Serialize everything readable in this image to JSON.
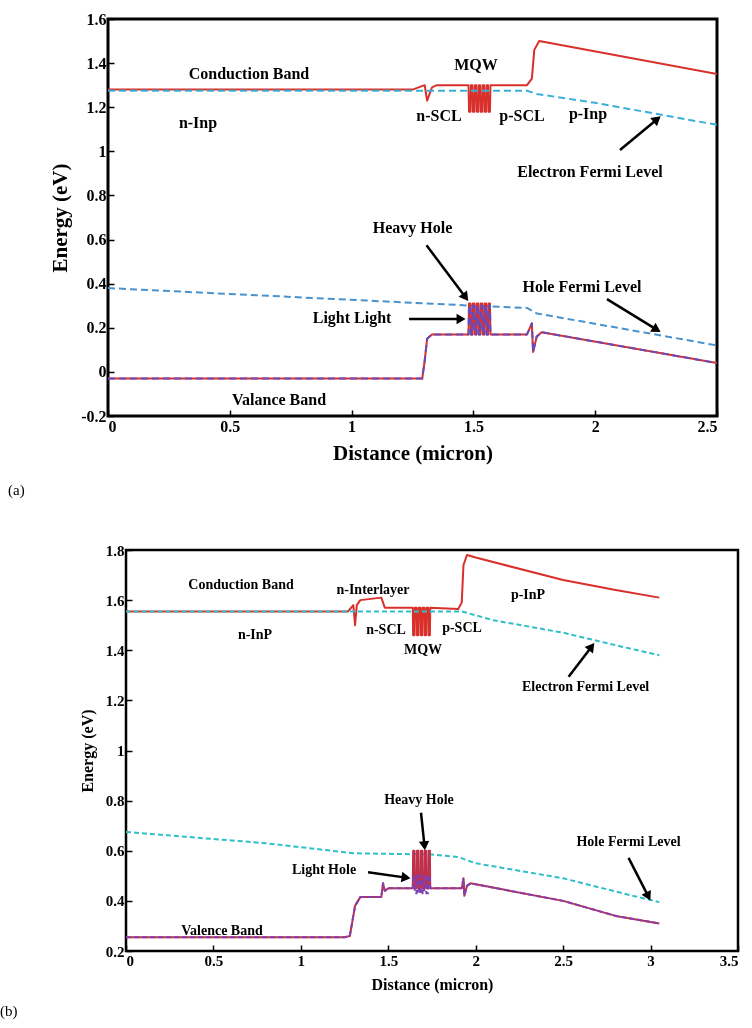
{
  "chart_data": [
    {
      "type": "line",
      "xlabel": "Distance (micron)",
      "ylabel": "Energy (eV)",
      "xlim": [
        0,
        2.5
      ],
      "ylim": [
        -0.2,
        1.6
      ],
      "xticks": [
        0,
        0.5,
        1,
        1.5,
        2,
        2.5
      ],
      "yticks": [
        -0.2,
        0,
        0.2,
        0.4,
        0.6,
        0.8,
        1,
        1.2,
        1.4,
        1.6
      ],
      "series": [
        {
          "color": "#d9302c",
          "line_style": "solid",
          "x": [
            0,
            1.25,
            1.3,
            1.31,
            1.33,
            1.35,
            1.48,
            1.482,
            1.488,
            1.49,
            1.496,
            1.498,
            1.504,
            1.506,
            1.512,
            1.514,
            1.52,
            1.522,
            1.528,
            1.53,
            1.536,
            1.538,
            1.544,
            1.546,
            1.552,
            1.554,
            1.56,
            1.562,
            1.568,
            1.57,
            1.72,
            1.74,
            1.75,
            1.77,
            2.5
          ],
          "values": [
            1.28,
            1.28,
            1.3,
            1.23,
            1.29,
            1.3,
            1.3,
            1.18,
            1.18,
            1.3,
            1.3,
            1.18,
            1.18,
            1.3,
            1.3,
            1.18,
            1.18,
            1.3,
            1.3,
            1.18,
            1.18,
            1.3,
            1.3,
            1.18,
            1.18,
            1.3,
            1.3,
            1.18,
            1.18,
            1.3,
            1.3,
            1.33,
            1.46,
            1.5,
            1.35
          ]
        },
        {
          "color": "#38b0d8",
          "line_style": "dashed",
          "x": [
            0,
            1.72,
            1.76,
            2.0,
            2.5
          ],
          "values": [
            1.275,
            1.275,
            1.26,
            1.22,
            1.12
          ]
        },
        {
          "color": "#4a92cc",
          "line_style": "dashed",
          "x": [
            0,
            1.5,
            1.72,
            1.76,
            2.5
          ],
          "values": [
            0.38,
            0.3,
            0.29,
            0.265,
            0.12
          ]
        },
        {
          "color": "#d9302c",
          "line_style": "solid",
          "x": [
            0,
            1.29,
            1.3,
            1.31,
            1.33,
            1.48,
            1.482,
            1.488,
            1.49,
            1.496,
            1.498,
            1.504,
            1.506,
            1.512,
            1.514,
            1.52,
            1.522,
            1.528,
            1.53,
            1.536,
            1.538,
            1.544,
            1.546,
            1.552,
            1.554,
            1.56,
            1.562,
            1.568,
            1.57,
            1.72,
            1.74,
            1.745,
            1.76,
            1.78,
            2.5
          ],
          "values": [
            -0.03,
            -0.03,
            0.05,
            0.15,
            0.17,
            0.17,
            0.31,
            0.31,
            0.17,
            0.17,
            0.31,
            0.31,
            0.17,
            0.17,
            0.31,
            0.31,
            0.17,
            0.17,
            0.31,
            0.31,
            0.17,
            0.17,
            0.31,
            0.31,
            0.17,
            0.17,
            0.31,
            0.31,
            0.17,
            0.17,
            0.22,
            0.09,
            0.16,
            0.18,
            0.04
          ]
        },
        {
          "color": "#6a4ab8",
          "line_style": "dashed",
          "x": [
            0,
            1.29,
            1.3,
            1.31,
            1.33,
            1.48,
            1.482,
            1.488,
            1.49,
            1.496,
            1.498,
            1.504,
            1.506,
            1.512,
            1.514,
            1.52,
            1.522,
            1.528,
            1.53,
            1.536,
            1.538,
            1.544,
            1.546,
            1.552,
            1.554,
            1.56,
            1.562,
            1.568,
            1.57,
            1.72,
            1.74,
            1.745,
            1.76,
            1.78,
            2.5
          ],
          "values": [
            -0.03,
            -0.03,
            0.05,
            0.15,
            0.17,
            0.17,
            0.3,
            0.3,
            0.17,
            0.17,
            0.3,
            0.3,
            0.17,
            0.17,
            0.3,
            0.3,
            0.17,
            0.17,
            0.3,
            0.3,
            0.17,
            0.17,
            0.3,
            0.3,
            0.17,
            0.17,
            0.3,
            0.3,
            0.17,
            0.17,
            0.22,
            0.09,
            0.16,
            0.18,
            0.04
          ]
        }
      ],
      "annotations": [
        "Conduction Band",
        "n-Inp",
        "MQW",
        "n-SCL",
        "p-SCL",
        "p-Inp",
        {
          "text": "Electron Fermi Level",
          "x": 2.27,
          "y": 1.16
        },
        {
          "text": "Heavy Hole",
          "x": 1.48,
          "y": 0.32
        },
        {
          "text": "Light Light",
          "x": 1.47,
          "y": 0.24
        },
        {
          "text": "Hole Fermi Level",
          "x": 2.27,
          "y": 0.18
        },
        "Valance Band",
        "(a)"
      ]
    },
    {
      "type": "line",
      "xlabel": "Distance (micron)",
      "ylabel": "Energy (eV)",
      "xlim": [
        0,
        3.5
      ],
      "ylim": [
        0.2,
        1.8
      ],
      "xticks": [
        0,
        0.5,
        1,
        1.5,
        2,
        2.5,
        3,
        3.5
      ],
      "yticks": [
        0.2,
        0.4,
        0.6,
        0.8,
        1,
        1.2,
        1.4,
        1.6,
        1.8
      ],
      "series": [
        {
          "color": "#d9302c",
          "line_style": "solid",
          "x": [
            0,
            1.27,
            1.3,
            1.31,
            1.32,
            1.34,
            1.46,
            1.48,
            1.64,
            1.642,
            1.65,
            1.652,
            1.662,
            1.664,
            1.672,
            1.674,
            1.684,
            1.686,
            1.694,
            1.696,
            1.706,
            1.708,
            1.716,
            1.718,
            1.728,
            1.73,
            1.738,
            1.74,
            1.9,
            1.92,
            1.93,
            1.95,
            2.0,
            2.5,
            2.8,
            3.05
          ],
          "values": [
            1.555,
            1.555,
            1.58,
            1.5,
            1.58,
            1.6,
            1.61,
            1.57,
            1.57,
            1.46,
            1.46,
            1.57,
            1.57,
            1.46,
            1.46,
            1.57,
            1.57,
            1.46,
            1.46,
            1.57,
            1.57,
            1.46,
            1.46,
            1.57,
            1.57,
            1.46,
            1.46,
            1.57,
            1.565,
            1.59,
            1.74,
            1.78,
            1.77,
            1.68,
            1.64,
            1.61
          ]
        },
        {
          "color": "#2ec0c8",
          "line_style": "dashed",
          "x": [
            0,
            1.92,
            2.1,
            2.5,
            2.8,
            3.05
          ],
          "values": [
            1.555,
            1.555,
            1.52,
            1.47,
            1.42,
            1.38
          ]
        },
        {
          "color": "#2ec0c8",
          "line_style": "dashed",
          "x": [
            0,
            0.8,
            1.3,
            1.75,
            1.9,
            2.0,
            2.5,
            2.9,
            3.05
          ],
          "values": [
            0.675,
            0.63,
            0.59,
            0.585,
            0.575,
            0.55,
            0.49,
            0.42,
            0.395
          ]
        },
        {
          "color": "#c0304a",
          "line_style": "solid",
          "x": [
            0,
            1.25,
            1.28,
            1.31,
            1.34,
            1.46,
            1.47,
            1.48,
            1.5,
            1.64,
            1.642,
            1.65,
            1.652,
            1.662,
            1.664,
            1.672,
            1.674,
            1.684,
            1.686,
            1.694,
            1.696,
            1.706,
            1.708,
            1.716,
            1.718,
            1.728,
            1.73,
            1.738,
            1.74,
            1.92,
            1.93,
            1.935,
            1.95,
            1.97,
            2.5,
            2.8,
            3.05
          ],
          "values": [
            0.255,
            0.255,
            0.26,
            0.38,
            0.415,
            0.415,
            0.47,
            0.44,
            0.45,
            0.45,
            0.6,
            0.6,
            0.45,
            0.45,
            0.6,
            0.6,
            0.45,
            0.45,
            0.6,
            0.6,
            0.45,
            0.45,
            0.6,
            0.6,
            0.45,
            0.45,
            0.6,
            0.6,
            0.45,
            0.45,
            0.49,
            0.42,
            0.46,
            0.47,
            0.4,
            0.34,
            0.31
          ]
        },
        {
          "color": "#8040b0",
          "line_style": "dashed",
          "x": [
            0,
            1.25,
            1.28,
            1.31,
            1.34,
            1.46,
            1.47,
            1.48,
            1.5,
            1.64,
            1.642,
            1.65,
            1.652,
            1.662,
            1.664,
            1.672,
            1.674,
            1.684,
            1.686,
            1.694,
            1.696,
            1.706,
            1.708,
            1.716,
            1.718,
            1.728,
            1.73,
            1.738,
            1.74,
            1.92,
            1.93,
            1.935,
            1.95,
            1.97,
            2.5,
            2.8,
            3.05
          ],
          "values": [
            0.255,
            0.255,
            0.26,
            0.38,
            0.415,
            0.415,
            0.47,
            0.44,
            0.45,
            0.45,
            0.5,
            0.5,
            0.43,
            0.43,
            0.5,
            0.5,
            0.43,
            0.43,
            0.5,
            0.5,
            0.43,
            0.43,
            0.5,
            0.5,
            0.43,
            0.43,
            0.5,
            0.5,
            0.45,
            0.45,
            0.49,
            0.42,
            0.46,
            0.47,
            0.4,
            0.34,
            0.31
          ]
        }
      ],
      "annotations": [
        "Conduction Band",
        "n-Interlayer",
        "p-InP",
        "n-InP",
        "n-SCL",
        "p-SCL",
        "MQW",
        {
          "text": "Electron Fermi Level",
          "x": 2.68,
          "y": 1.43
        },
        {
          "text": "Heavy Hole",
          "x": 1.71,
          "y": 0.6
        },
        {
          "text": "Light Hole",
          "x": 1.63,
          "y": 0.49
        },
        {
          "text": "Hole Fermi Level",
          "x": 3.0,
          "y": 0.4
        },
        "Valence Band",
        "(b)"
      ]
    }
  ]
}
